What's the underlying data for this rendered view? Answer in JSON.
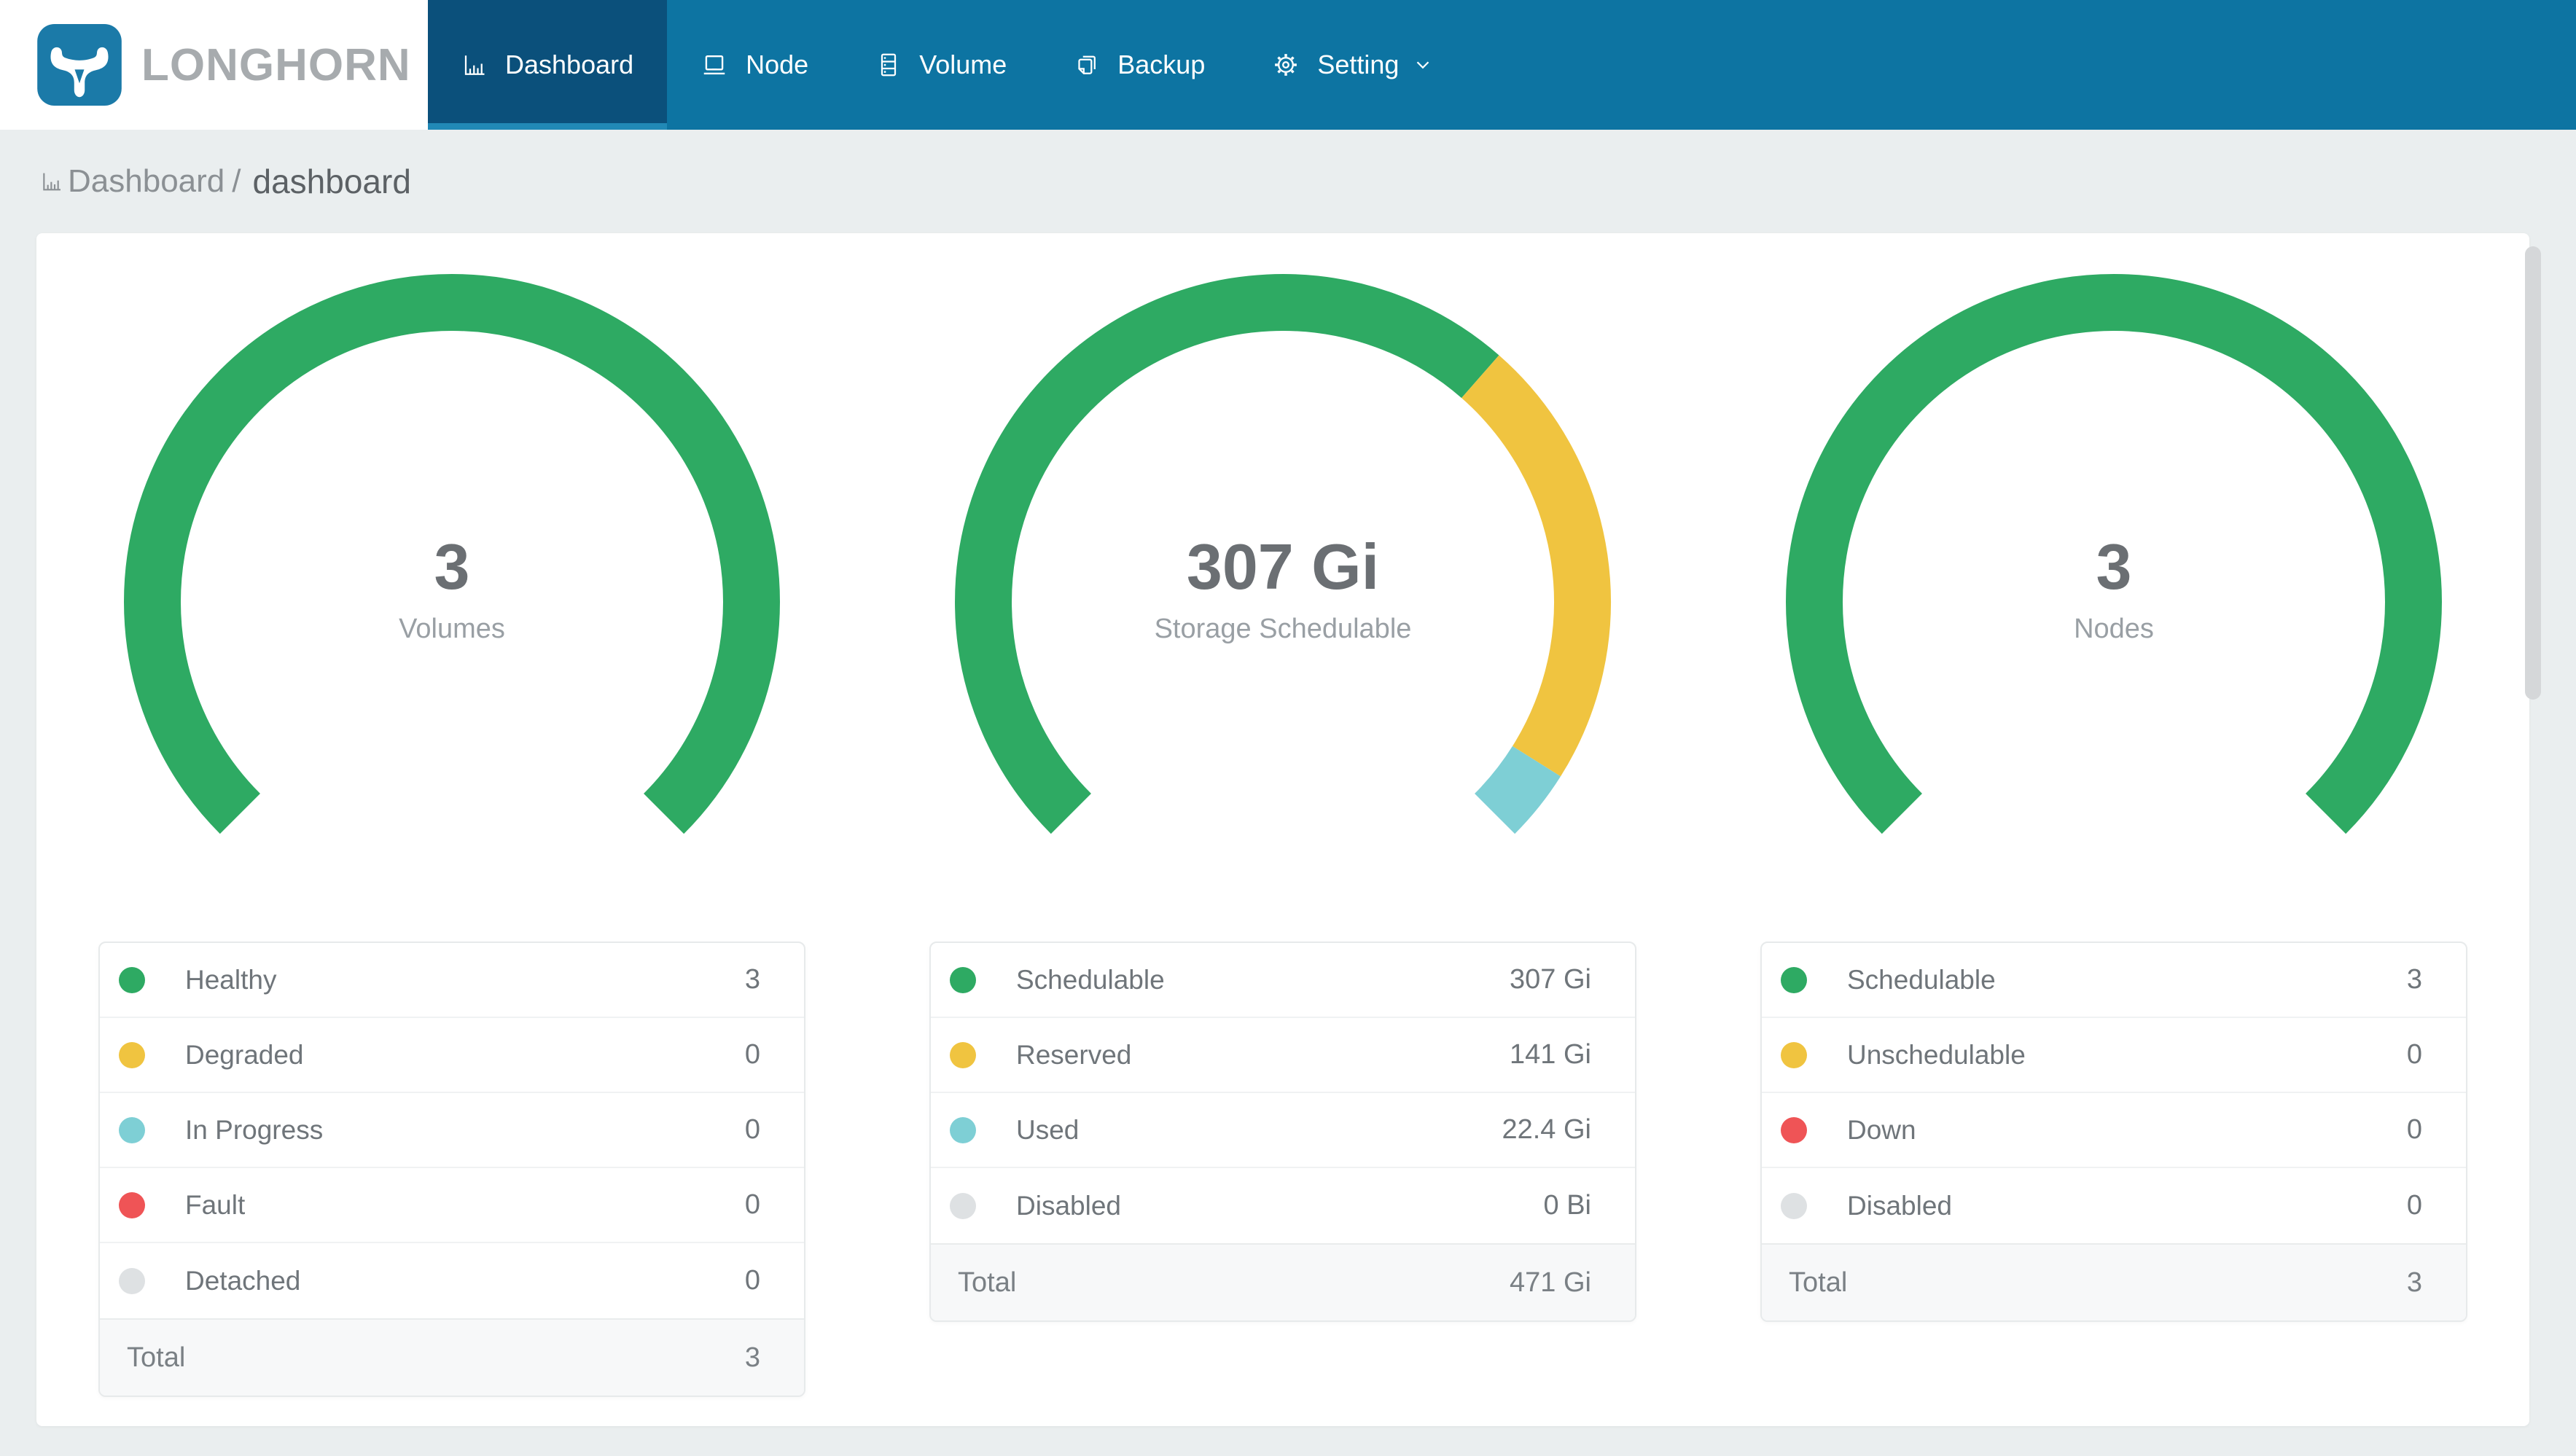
{
  "nav": {
    "logo_text": "LONGHORN",
    "items": [
      {
        "label": "Dashboard",
        "icon": "bar-chart-icon",
        "active": true
      },
      {
        "label": "Node",
        "icon": "laptop-icon",
        "active": false
      },
      {
        "label": "Volume",
        "icon": "server-icon",
        "active": false
      },
      {
        "label": "Backup",
        "icon": "copy-icon",
        "active": false
      },
      {
        "label": "Setting",
        "icon": "gear-icon",
        "active": false,
        "has_caret": true
      }
    ]
  },
  "breadcrumb": {
    "section": "Dashboard",
    "separator": "/",
    "page": "dashboard"
  },
  "colors": {
    "nav_bg": "#0d74a2",
    "nav_active_bg": "#0b507b",
    "nav_active_underline": "#2189b6",
    "logo_square": "#1b7aa8",
    "healthy_green": "#2eaa63",
    "warning_yellow": "#f0c440",
    "progress_teal": "#7ecfd5",
    "fault_red": "#ef5456",
    "disabled_gray": "#dee1e3",
    "page_bg": "#eaeeef"
  },
  "chart_data": [
    {
      "type": "gauge",
      "center_value": "3",
      "center_label": "Volumes",
      "arc_start_deg": 135,
      "arc_sweep_deg": 270,
      "segments": [
        {
          "label": "Healthy",
          "color": "#2eaa63",
          "value": 3,
          "display_value": "3"
        },
        {
          "label": "Degraded",
          "color": "#f0c440",
          "value": 0,
          "display_value": "0"
        },
        {
          "label": "In Progress",
          "color": "#7ecfd5",
          "value": 0,
          "display_value": "0"
        },
        {
          "label": "Fault",
          "color": "#ef5456",
          "value": 0,
          "display_value": "0"
        },
        {
          "label": "Detached",
          "color": "#dee1e3",
          "value": 0,
          "display_value": "0"
        }
      ],
      "total_label": "Total",
      "total_value": "3"
    },
    {
      "type": "gauge",
      "center_value": "307 Gi",
      "center_label": "Storage Schedulable",
      "arc_start_deg": 135,
      "arc_sweep_deg": 270,
      "segments": [
        {
          "label": "Schedulable",
          "color": "#2eaa63",
          "value": 307,
          "display_value": "307 Gi"
        },
        {
          "label": "Reserved",
          "color": "#f0c440",
          "value": 141,
          "display_value": "141 Gi"
        },
        {
          "label": "Used",
          "color": "#7ecfd5",
          "value": 22.4,
          "display_value": "22.4 Gi"
        },
        {
          "label": "Disabled",
          "color": "#dee1e3",
          "value": 0,
          "display_value": "0 Bi"
        }
      ],
      "total_label": "Total",
      "total_value": "471 Gi"
    },
    {
      "type": "gauge",
      "center_value": "3",
      "center_label": "Nodes",
      "arc_start_deg": 135,
      "arc_sweep_deg": 270,
      "segments": [
        {
          "label": "Schedulable",
          "color": "#2eaa63",
          "value": 3,
          "display_value": "3"
        },
        {
          "label": "Unschedulable",
          "color": "#f0c440",
          "value": 0,
          "display_value": "0"
        },
        {
          "label": "Down",
          "color": "#ef5456",
          "value": 0,
          "display_value": "0"
        },
        {
          "label": "Disabled",
          "color": "#dee1e3",
          "value": 0,
          "display_value": "0"
        }
      ],
      "total_label": "Total",
      "total_value": "3"
    }
  ]
}
